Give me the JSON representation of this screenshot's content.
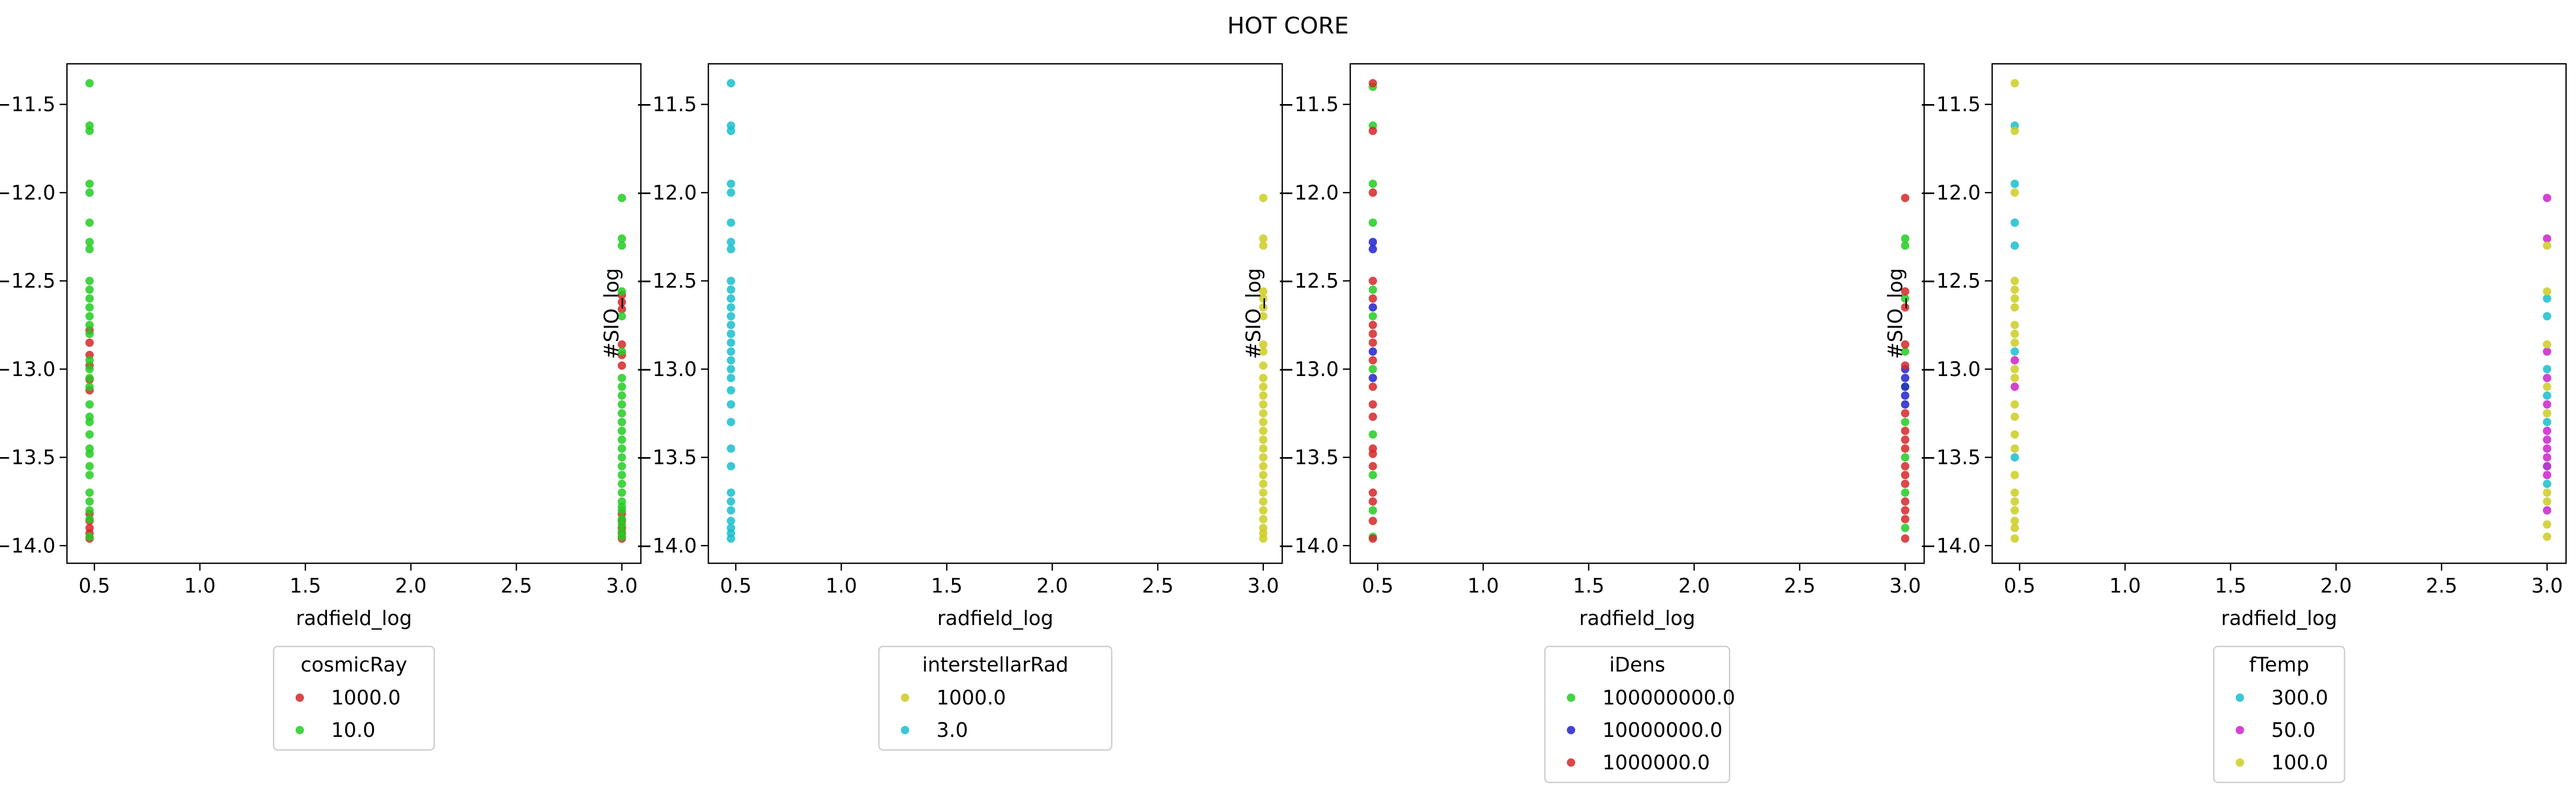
{
  "figure": {
    "title": "HOT CORE"
  },
  "chart_data": [
    {
      "type": "scatter",
      "xlabel": "radfield_log",
      "ylabel": "#SIO_log",
      "xlim": [
        0.37,
        3.09
      ],
      "ylim": [
        -14.1,
        -11.27
      ],
      "xticks": [
        "0.5",
        "1.0",
        "1.5",
        "2.0",
        "2.5",
        "3.0"
      ],
      "yticks": [
        "−11.5",
        "−12.0",
        "−12.5",
        "−13.0",
        "−13.5",
        "−14.0"
      ],
      "legend": {
        "title": "cosmicRay",
        "placement": "below"
      },
      "series": [
        {
          "name": "1000.0",
          "color": "#d62728",
          "x": [
            0.477,
            0.477,
            0.477,
            0.477,
            0.477,
            0.477,
            0.477,
            0.477,
            0.477,
            0.477,
            0.477,
            3.0,
            3.0,
            3.0,
            3.0,
            3.0,
            3.0,
            3.0,
            3.0,
            3.0,
            3.0,
            3.0
          ],
          "y": [
            -12.78,
            -12.85,
            -12.92,
            -12.98,
            -13.06,
            -13.12,
            -13.82,
            -13.86,
            -13.9,
            -13.93,
            -13.96,
            -12.58,
            -12.62,
            -12.66,
            -12.86,
            -12.92,
            -12.98,
            -13.82,
            -13.86,
            -13.9,
            -13.93,
            -13.96
          ]
        },
        {
          "name": "10.0",
          "color": "#22cc22",
          "x": [
            0.477,
            0.477,
            0.477,
            0.477,
            0.477,
            0.477,
            0.477,
            0.477,
            0.477,
            0.477,
            0.477,
            0.477,
            0.477,
            0.477,
            0.477,
            0.477,
            0.477,
            0.477,
            0.477,
            0.477,
            0.477,
            0.477,
            0.477,
            0.477,
            0.477,
            0.477,
            0.477,
            0.477,
            0.477,
            0.477,
            0.477,
            0.477,
            3.0,
            3.0,
            3.0,
            3.0,
            3.0,
            3.0,
            3.0,
            3.0,
            3.0,
            3.0,
            3.0,
            3.0,
            3.0,
            3.0,
            3.0,
            3.0,
            3.0,
            3.0,
            3.0,
            3.0,
            3.0,
            3.0,
            3.0,
            3.0,
            3.0,
            3.0,
            3.0
          ],
          "y": [
            -11.38,
            -11.62,
            -11.65,
            -11.95,
            -12.0,
            -12.17,
            -12.28,
            -12.32,
            -12.5,
            -12.55,
            -12.6,
            -12.65,
            -12.7,
            -12.75,
            -12.8,
            -12.95,
            -13.0,
            -13.05,
            -13.1,
            -13.2,
            -13.27,
            -13.3,
            -13.37,
            -13.45,
            -13.48,
            -13.55,
            -13.6,
            -13.7,
            -13.75,
            -13.8,
            -13.85,
            -13.95,
            -12.03,
            -12.26,
            -12.3,
            -12.56,
            -12.7,
            -12.9,
            -13.05,
            -13.1,
            -13.15,
            -13.2,
            -13.25,
            -13.3,
            -13.35,
            -13.4,
            -13.45,
            -13.5,
            -13.55,
            -13.6,
            -13.65,
            -13.7,
            -13.75,
            -13.78,
            -13.8,
            -13.85,
            -13.88,
            -13.92,
            -13.95
          ]
        }
      ]
    },
    {
      "type": "scatter",
      "xlabel": "radfield_log",
      "ylabel": "#SIO_log",
      "xlim": [
        0.37,
        3.09
      ],
      "ylim": [
        -14.1,
        -11.27
      ],
      "xticks": [
        "0.5",
        "1.0",
        "1.5",
        "2.0",
        "2.5",
        "3.0"
      ],
      "yticks": [
        "−11.5",
        "−12.0",
        "−12.5",
        "−13.0",
        "−13.5",
        "−14.0"
      ],
      "legend": {
        "title": "interstellarRad",
        "placement": "below"
      },
      "series": [
        {
          "name": "1000.0",
          "color": "#cccc22",
          "x": [
            3.0,
            3.0,
            3.0,
            3.0,
            3.0,
            3.0,
            3.0,
            3.0,
            3.0,
            3.0,
            3.0,
            3.0,
            3.0,
            3.0,
            3.0,
            3.0,
            3.0,
            3.0,
            3.0,
            3.0,
            3.0,
            3.0,
            3.0,
            3.0,
            3.0,
            3.0,
            3.0,
            3.0,
            3.0,
            3.0
          ],
          "y": [
            -12.03,
            -12.26,
            -12.3,
            -12.56,
            -12.6,
            -12.65,
            -12.7,
            -12.86,
            -12.9,
            -12.98,
            -13.05,
            -13.1,
            -13.15,
            -13.2,
            -13.25,
            -13.3,
            -13.35,
            -13.4,
            -13.45,
            -13.5,
            -13.55,
            -13.6,
            -13.65,
            -13.7,
            -13.75,
            -13.8,
            -13.85,
            -13.9,
            -13.93,
            -13.96
          ]
        },
        {
          "name": "3.0",
          "color": "#17becf",
          "x": [
            0.477,
            0.477,
            0.477,
            0.477,
            0.477,
            0.477,
            0.477,
            0.477,
            0.477,
            0.477,
            0.477,
            0.477,
            0.477,
            0.477,
            0.477,
            0.477,
            0.477,
            0.477,
            0.477,
            0.477,
            0.477,
            0.477,
            0.477,
            0.477,
            0.477,
            0.477,
            0.477,
            0.477,
            0.477,
            0.477,
            0.477,
            0.477
          ],
          "y": [
            -11.38,
            -11.62,
            -11.65,
            -11.95,
            -12.0,
            -12.17,
            -12.28,
            -12.32,
            -12.5,
            -12.55,
            -12.6,
            -12.65,
            -12.7,
            -12.75,
            -12.8,
            -12.85,
            -12.9,
            -12.95,
            -13.0,
            -13.05,
            -13.12,
            -13.2,
            -13.3,
            -13.45,
            -13.55,
            -13.7,
            -13.75,
            -13.8,
            -13.86,
            -13.9,
            -13.93,
            -13.96
          ]
        }
      ]
    },
    {
      "type": "scatter",
      "xlabel": "radfield_log",
      "ylabel": "#SIO_log",
      "xlim": [
        0.37,
        3.09
      ],
      "ylim": [
        -14.1,
        -11.27
      ],
      "xticks": [
        "0.5",
        "1.0",
        "1.5",
        "2.0",
        "2.5",
        "3.0"
      ],
      "yticks": [
        "−11.5",
        "−12.0",
        "−12.5",
        "−13.0",
        "−13.5",
        "−14.0"
      ],
      "legend": {
        "title": "iDens",
        "placement": "below"
      },
      "series": [
        {
          "name": "100000000.0",
          "color": "#22cc22",
          "x": [
            0.477,
            0.477,
            0.477,
            0.477,
            0.477,
            0.477,
            0.477,
            0.477,
            0.477,
            0.477,
            0.477,
            3.0,
            3.0,
            3.0,
            3.0,
            3.0,
            3.0,
            3.0,
            3.0,
            3.0
          ],
          "y": [
            -11.4,
            -11.62,
            -11.95,
            -12.17,
            -12.55,
            -12.7,
            -13.0,
            -13.37,
            -13.6,
            -13.8,
            -13.95,
            -12.26,
            -12.3,
            -12.6,
            -12.9,
            -13.1,
            -13.3,
            -13.5,
            -13.7,
            -13.9
          ]
        },
        {
          "name": "10000000.0",
          "color": "#2222cc",
          "x": [
            0.477,
            0.477,
            0.477,
            0.477,
            0.477,
            3.0,
            3.0,
            3.0,
            3.0,
            3.0
          ],
          "y": [
            -12.28,
            -12.32,
            -12.65,
            -12.9,
            -13.05,
            -13.0,
            -13.05,
            -13.1,
            -13.15,
            -13.2
          ]
        },
        {
          "name": "1000000.0",
          "color": "#d62728",
          "x": [
            0.477,
            0.477,
            0.477,
            0.477,
            0.477,
            0.477,
            0.477,
            0.477,
            0.477,
            0.477,
            0.477,
            0.477,
            0.477,
            0.477,
            0.477,
            0.477,
            0.477,
            0.477,
            0.477,
            3.0,
            3.0,
            3.0,
            3.0,
            3.0,
            3.0,
            3.0,
            3.0,
            3.0,
            3.0,
            3.0,
            3.0,
            3.0,
            3.0,
            3.0,
            3.0
          ],
          "y": [
            -11.38,
            -11.65,
            -12.0,
            -12.5,
            -12.6,
            -12.75,
            -12.8,
            -12.85,
            -12.95,
            -13.1,
            -13.2,
            -13.27,
            -13.45,
            -13.48,
            -13.55,
            -13.7,
            -13.75,
            -13.86,
            -13.96,
            -12.03,
            -12.56,
            -12.65,
            -12.86,
            -12.98,
            -13.25,
            -13.35,
            -13.4,
            -13.45,
            -13.55,
            -13.6,
            -13.65,
            -13.75,
            -13.8,
            -13.85,
            -13.96
          ]
        }
      ]
    },
    {
      "type": "scatter",
      "xlabel": "radfield_log",
      "ylabel": "#SIO_log",
      "xlim": [
        0.37,
        3.09
      ],
      "ylim": [
        -14.1,
        -11.27
      ],
      "xticks": [
        "0.5",
        "1.0",
        "1.5",
        "2.0",
        "2.5",
        "3.0"
      ],
      "yticks": [
        "−11.5",
        "−12.0",
        "−12.5",
        "−13.0",
        "−13.5",
        "−14.0"
      ],
      "legend": {
        "title": "fTemp",
        "placement": "below"
      },
      "series": [
        {
          "name": "300.0",
          "color": "#17becf",
          "x": [
            0.477,
            0.477,
            0.477,
            0.477,
            0.477,
            0.477,
            3.0,
            3.0,
            3.0,
            3.0,
            3.0,
            3.0,
            3.0
          ],
          "y": [
            -11.62,
            -11.95,
            -12.17,
            -12.3,
            -12.9,
            -13.5,
            -12.6,
            -12.7,
            -13.0,
            -13.15,
            -13.3,
            -13.55,
            -13.65
          ]
        },
        {
          "name": "50.0",
          "color": "#cc22cc",
          "x": [
            0.477,
            0.477,
            3.0,
            3.0,
            3.0,
            3.0,
            3.0,
            3.0,
            3.0,
            3.0,
            3.0,
            3.0,
            3.0,
            3.0
          ],
          "y": [
            -12.95,
            -13.1,
            -12.03,
            -12.26,
            -12.9,
            -13.05,
            -13.2,
            -13.35,
            -13.4,
            -13.45,
            -13.5,
            -13.55,
            -13.6,
            -13.8
          ]
        },
        {
          "name": "100.0",
          "color": "#cccc22",
          "x": [
            0.477,
            0.477,
            0.477,
            0.477,
            0.477,
            0.477,
            0.477,
            0.477,
            0.477,
            0.477,
            0.477,
            0.477,
            0.477,
            0.477,
            0.477,
            0.477,
            0.477,
            0.477,
            0.477,
            0.477,
            0.477,
            0.477,
            0.477,
            3.0,
            3.0,
            3.0,
            3.0,
            3.0,
            3.0,
            3.0,
            3.0,
            3.0
          ],
          "y": [
            -11.38,
            -11.65,
            -12.0,
            -12.5,
            -12.55,
            -12.6,
            -12.65,
            -12.75,
            -12.8,
            -12.85,
            -13.0,
            -13.05,
            -13.2,
            -13.27,
            -13.37,
            -13.45,
            -13.6,
            -13.7,
            -13.75,
            -13.8,
            -13.86,
            -13.9,
            -13.96,
            -12.3,
            -12.56,
            -12.86,
            -13.1,
            -13.25,
            -13.7,
            -13.75,
            -13.88,
            -13.95
          ]
        }
      ]
    }
  ]
}
